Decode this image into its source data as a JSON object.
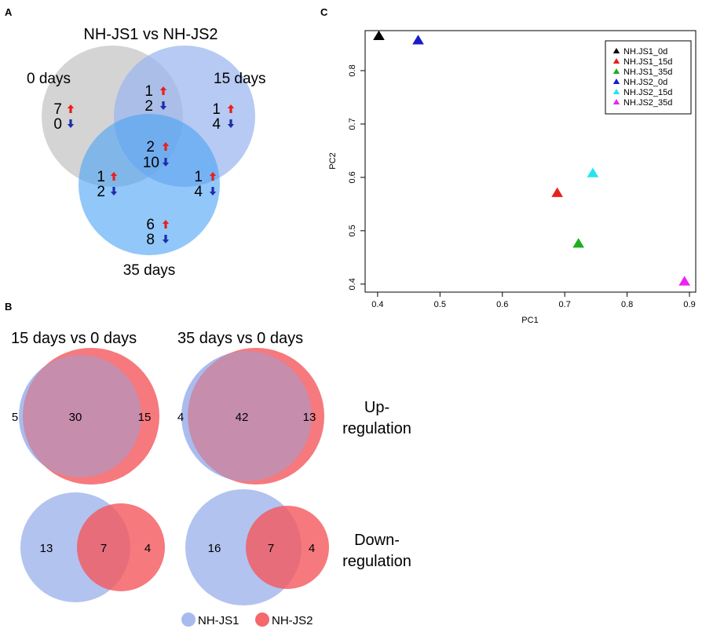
{
  "panels": {
    "a": "A",
    "b": "B",
    "c": "C"
  },
  "colors": {
    "up_arrow": "#e8201b",
    "down_arrow": "#1d2ea8",
    "gray_set": "#cccccc",
    "blue_light_set": "#9bb6ee",
    "blue_set": "#4aa2f5",
    "nhjs1": "#9fb4ec",
    "nhjs2": "#f4585c"
  },
  "chart_data": [
    {
      "type": "venn",
      "panel": "A",
      "title": "NH-JS1 vs NH-JS2",
      "sets": [
        "0 days",
        "15 days",
        "35 days"
      ],
      "regions": [
        {
          "id": "only_0",
          "up": "7",
          "down": "0"
        },
        {
          "id": "0_15",
          "up": "1",
          "down": "2"
        },
        {
          "id": "only_15",
          "up": "1",
          "down": "4"
        },
        {
          "id": "all",
          "up": "2",
          "down": "10"
        },
        {
          "id": "0_35",
          "up": "1",
          "down": "2"
        },
        {
          "id": "15_35",
          "up": "1",
          "down": "4"
        },
        {
          "id": "only_35",
          "up": "6",
          "down": "8"
        }
      ]
    },
    {
      "type": "venn",
      "panel": "B",
      "comparisons": [
        "15 days vs 0 days",
        "35 days vs 0 days"
      ],
      "rows": [
        "Up-\nregulation",
        "Down-\nregulation"
      ],
      "row_labels": [
        [
          "Up-",
          "regulation"
        ],
        [
          "Down-",
          "regulation"
        ]
      ],
      "diagrams": [
        {
          "comparison": "15 days vs 0 days",
          "regulation": "Up",
          "nhjs1_only": "5",
          "shared": "30",
          "nhjs2_only": "15"
        },
        {
          "comparison": "35 days vs 0 days",
          "regulation": "Up",
          "nhjs1_only": "4",
          "shared": "42",
          "nhjs2_only": "13"
        },
        {
          "comparison": "15 days vs 0 days",
          "regulation": "Down",
          "nhjs1_only": "13",
          "shared": "7",
          "nhjs2_only": "4"
        },
        {
          "comparison": "35 days vs 0 days",
          "regulation": "Down",
          "nhjs1_only": "16",
          "shared": "7",
          "nhjs2_only": "4"
        }
      ],
      "legend": [
        "NH-JS1",
        "NH-JS2"
      ]
    },
    {
      "type": "scatter",
      "panel": "C",
      "xlabel": "PC1",
      "ylabel": "PC2",
      "xlim": [
        0.38,
        0.91
      ],
      "ylim": [
        0.385,
        0.875
      ],
      "xticks": [
        "0.4",
        "0.5",
        "0.6",
        "0.7",
        "0.8",
        "0.9"
      ],
      "yticks": [
        "0.4",
        "0.5",
        "0.6",
        "0.7",
        "0.8"
      ],
      "series": [
        {
          "name": "NH.JS1_0d",
          "color": "#000000",
          "x": 0.402,
          "y": 0.865
        },
        {
          "name": "NH.JS1_15d",
          "color": "#e8201b",
          "x": 0.688,
          "y": 0.571
        },
        {
          "name": "NH.JS1_35d",
          "color": "#1fae1f",
          "x": 0.722,
          "y": 0.476
        },
        {
          "name": "NH.JS2_0d",
          "color": "#1a1acd",
          "x": 0.465,
          "y": 0.857
        },
        {
          "name": "NH.JS2_15d",
          "color": "#22e6ef",
          "x": 0.745,
          "y": 0.608
        },
        {
          "name": "NH.JS2_35d",
          "color": "#ee22ee",
          "x": 0.892,
          "y": 0.405
        }
      ]
    }
  ]
}
